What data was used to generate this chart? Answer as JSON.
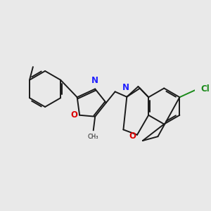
{
  "bg_color": "#e9e9e9",
  "bond_color": "#1a1a1a",
  "N_color": "#2020ff",
  "O_color": "#dd0000",
  "Cl_color": "#1a8a1a",
  "line_width": 1.4,
  "dbo": 0.045,
  "figsize": [
    3.0,
    3.0
  ],
  "dpi": 100,
  "xlim": [
    -2.8,
    2.8
  ],
  "ylim": [
    -1.6,
    2.0
  ]
}
